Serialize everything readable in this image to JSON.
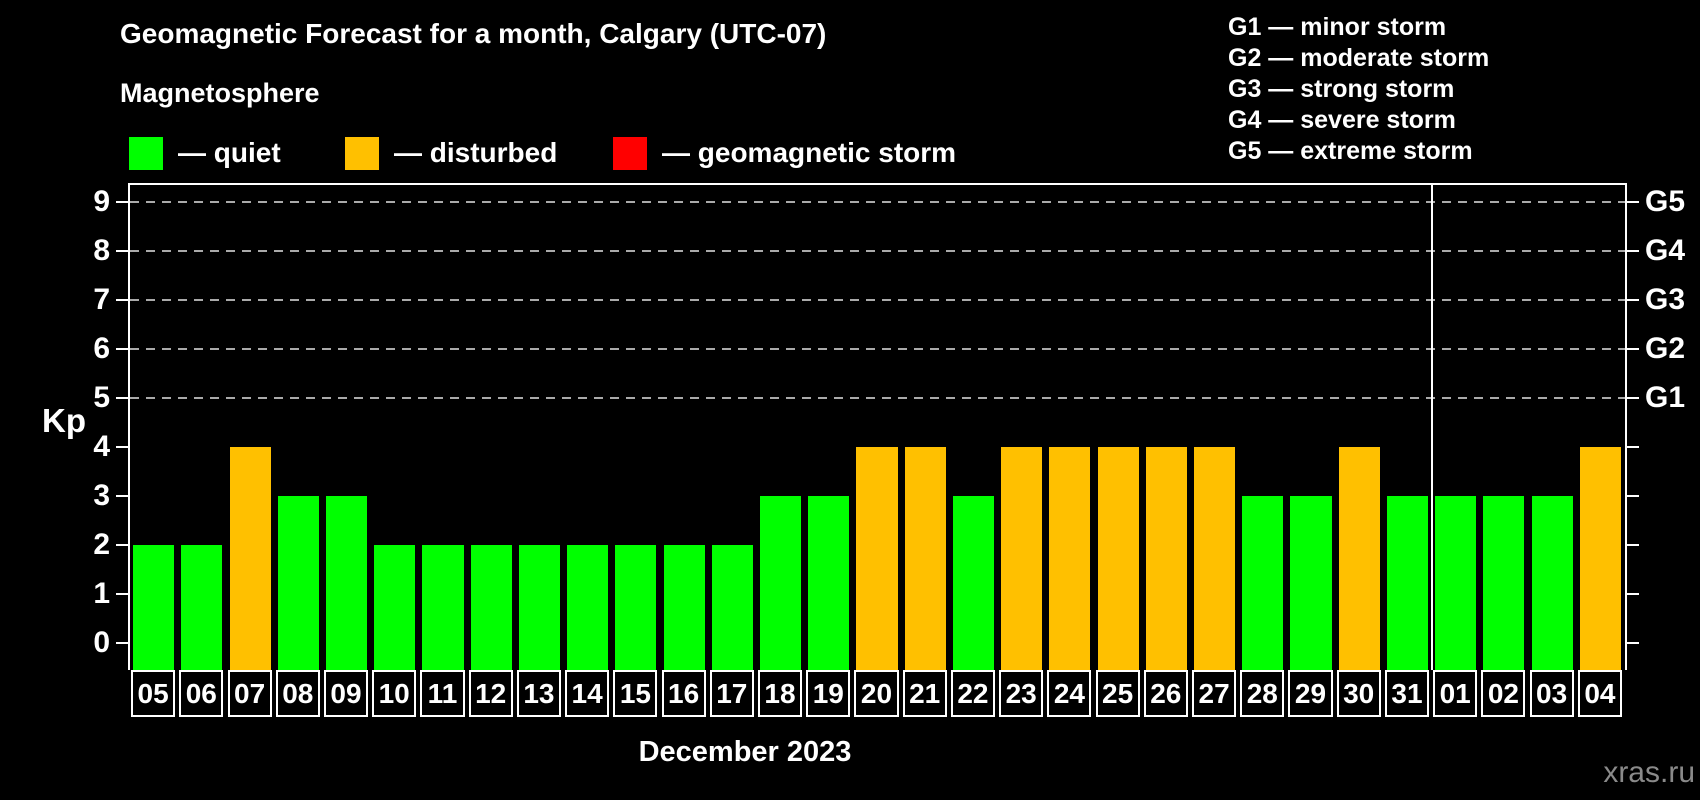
{
  "title": "Geomagnetic Forecast for a month, Calgary (UTC-07)",
  "subtitle": "Magnetosphere",
  "magnetosphere_legend": [
    {
      "label": "— quiet",
      "status": "quiet"
    },
    {
      "label": "— disturbed",
      "status": "disturbed"
    },
    {
      "label": "— geomagnetic storm",
      "status": "storm"
    }
  ],
  "storm_scale_legend": [
    "G1 — minor storm",
    "G2 — moderate storm",
    "G3 — strong storm",
    "G4 — severe storm",
    "G5 — extreme storm"
  ],
  "kp_axis_label": "Kp",
  "month_caption": "December 2023",
  "watermark": "xras.ru",
  "colors": {
    "quiet": "#00ff00",
    "disturbed": "#ffc000",
    "storm": "#ff0000",
    "axis": "#ffffff",
    "gridline": "#aaaaaa",
    "background": "#000000",
    "watermark": "#8a8a8a"
  },
  "chart_data": {
    "type": "bar",
    "title": "Geomagnetic Forecast for a month, Calgary (UTC-07)",
    "ylabel": "Kp",
    "ylim": [
      -0.55,
      9.45
    ],
    "y_ticks": [
      0,
      1,
      2,
      3,
      4,
      5,
      6,
      7,
      8,
      9
    ],
    "gridlines_at": [
      5,
      6,
      7,
      8,
      9
    ],
    "grid": "dashed-horizontal",
    "legend_position": "top",
    "right_axis_labels": [
      {
        "kp": 5,
        "text": "G1"
      },
      {
        "kp": 6,
        "text": "G2"
      },
      {
        "kp": 7,
        "text": "G3"
      },
      {
        "kp": 8,
        "text": "G4"
      },
      {
        "kp": 9,
        "text": "G5"
      }
    ],
    "categories": [
      "05",
      "06",
      "07",
      "08",
      "09",
      "10",
      "11",
      "12",
      "13",
      "14",
      "15",
      "16",
      "17",
      "18",
      "19",
      "20",
      "21",
      "22",
      "23",
      "24",
      "25",
      "26",
      "27",
      "28",
      "29",
      "30",
      "31",
      "01",
      "02",
      "03",
      "04"
    ],
    "values": [
      2,
      2,
      4,
      3,
      3,
      2,
      2,
      2,
      2,
      2,
      2,
      2,
      2,
      3,
      3,
      4,
      4,
      3,
      4,
      4,
      4,
      4,
      4,
      3,
      3,
      4,
      3,
      3,
      3,
      3,
      4
    ],
    "statuses": [
      "quiet",
      "quiet",
      "disturbed",
      "quiet",
      "quiet",
      "quiet",
      "quiet",
      "quiet",
      "quiet",
      "quiet",
      "quiet",
      "quiet",
      "quiet",
      "quiet",
      "quiet",
      "disturbed",
      "disturbed",
      "quiet",
      "disturbed",
      "disturbed",
      "disturbed",
      "disturbed",
      "disturbed",
      "quiet",
      "quiet",
      "disturbed",
      "quiet",
      "quiet",
      "quiet",
      "quiet",
      "disturbed"
    ],
    "month_separator_after_index": 26
  }
}
